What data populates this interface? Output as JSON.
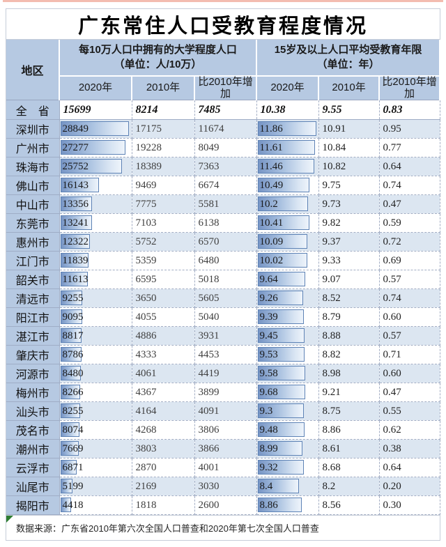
{
  "page": {
    "title": "广东常住人口受教育程度情况",
    "source_note": "数据来源：广东省2010年第六次全国人口普查和2020年第七次全国人口普查"
  },
  "table": {
    "region_header": "地区",
    "groups": [
      {
        "title_line1": "每10万人口中拥有的大学程度人口",
        "title_line2": "（单位：人/10万）"
      },
      {
        "title_line1": "15岁及以上人口平均受教育年限",
        "title_line2": "（单位：年）"
      }
    ],
    "sub_headers": [
      "2020年",
      "2010年",
      "比2010年增加",
      "2020年",
      "2010年",
      "比2010年增加"
    ],
    "total_row": {
      "region": "全　省",
      "values": [
        "15699",
        "8214",
        "7485",
        "10.38",
        "9.55",
        "0.83"
      ]
    },
    "rows": [
      {
        "region": "深圳市",
        "values": [
          "28849",
          "17175",
          "11674",
          "11.86",
          "10.91",
          "0.95"
        ],
        "shaded": true
      },
      {
        "region": "广州市",
        "values": [
          "27277",
          "19228",
          "8049",
          "11.61",
          "10.84",
          "0.77"
        ],
        "shaded": false
      },
      {
        "region": "珠海市",
        "values": [
          "25752",
          "18389",
          "7363",
          "11.46",
          "10.82",
          "0.64"
        ],
        "shaded": true
      },
      {
        "region": "佛山市",
        "values": [
          "16143",
          "9469",
          "6674",
          "10.49",
          "9.75",
          "0.74"
        ],
        "shaded": false
      },
      {
        "region": "中山市",
        "values": [
          "13356",
          "7775",
          "5581",
          "10.2",
          "9.73",
          "0.47"
        ],
        "shaded": true
      },
      {
        "region": "东莞市",
        "values": [
          "13241",
          "7103",
          "6138",
          "10.41",
          "9.82",
          "0.59"
        ],
        "shaded": false
      },
      {
        "region": "惠州市",
        "values": [
          "12322",
          "5752",
          "6570",
          "10.09",
          "9.37",
          "0.72"
        ],
        "shaded": true
      },
      {
        "region": "江门市",
        "values": [
          "11839",
          "5359",
          "6480",
          "10.02",
          "9.33",
          "0.69"
        ],
        "shaded": false
      },
      {
        "region": "韶关市",
        "values": [
          "11613",
          "6595",
          "5018",
          "9.64",
          "9.07",
          "0.57"
        ],
        "shaded": false
      },
      {
        "region": "清远市",
        "values": [
          "9255",
          "3650",
          "5605",
          "9.26",
          "8.52",
          "0.74"
        ],
        "shaded": true
      },
      {
        "region": "阳江市",
        "values": [
          "9095",
          "4055",
          "5040",
          "9.39",
          "8.79",
          "0.60"
        ],
        "shaded": false
      },
      {
        "region": "湛江市",
        "values": [
          "8817",
          "4886",
          "3931",
          "9.45",
          "8.88",
          "0.57"
        ],
        "shaded": true
      },
      {
        "region": "肇庆市",
        "values": [
          "8786",
          "4333",
          "4453",
          "9.53",
          "8.82",
          "0.71"
        ],
        "shaded": false
      },
      {
        "region": "河源市",
        "values": [
          "8480",
          "4061",
          "4419",
          "9.58",
          "8.98",
          "0.60"
        ],
        "shaded": true
      },
      {
        "region": "梅州市",
        "values": [
          "8266",
          "4367",
          "3899",
          "9.68",
          "9.21",
          "0.47"
        ],
        "shaded": false
      },
      {
        "region": "汕头市",
        "values": [
          "8255",
          "4164",
          "4091",
          "9.3",
          "8.75",
          "0.55"
        ],
        "shaded": true
      },
      {
        "region": "茂名市",
        "values": [
          "8074",
          "4268",
          "3806",
          "9.48",
          "8.86",
          "0.62"
        ],
        "shaded": false
      },
      {
        "region": "潮州市",
        "values": [
          "7669",
          "3803",
          "3866",
          "8.99",
          "8.61",
          "0.38"
        ],
        "shaded": true
      },
      {
        "region": "云浮市",
        "values": [
          "6871",
          "2870",
          "4001",
          "9.32",
          "8.68",
          "0.64"
        ],
        "shaded": false
      },
      {
        "region": "汕尾市",
        "values": [
          "5199",
          "2169",
          "3030",
          "8.4",
          "8.2",
          "0.20"
        ],
        "shaded": true
      },
      {
        "region": "揭阳市",
        "values": [
          "4418",
          "1818",
          "2600",
          "8.86",
          "8.56",
          "0.30"
        ],
        "shaded": false
      }
    ],
    "bar_scale": {
      "college_max": 28849,
      "years_max": 11.86,
      "max_width_pct": 96
    }
  },
  "colors": {
    "header_blue": "#b6c9e2",
    "band_blue": "#dce6f1",
    "bar_border": "#5d82b5",
    "bar_fill_start": "#7795c5",
    "grid_dash": "#a3aec4",
    "accent_strip": "#f3bcb0",
    "flag_green": "#2e7d32"
  },
  "chart_data": {
    "type": "table",
    "title": "广东常住人口受教育程度情况",
    "column_groups": [
      "每10万人口中拥有的大学程度人口（单位：人/10万）",
      "15岁及以上人口平均受教育年限（单位：年）"
    ],
    "columns": [
      "地区",
      "大学程度人口 2020年",
      "大学程度人口 2010年",
      "大学程度人口 比2010年增加",
      "平均受教育年限 2020年",
      "平均受教育年限 2010年",
      "平均受教育年限 比2010年增加"
    ],
    "rows": [
      [
        "全省",
        15699,
        8214,
        7485,
        10.38,
        9.55,
        0.83
      ],
      [
        "深圳市",
        28849,
        17175,
        11674,
        11.86,
        10.91,
        0.95
      ],
      [
        "广州市",
        27277,
        19228,
        8049,
        11.61,
        10.84,
        0.77
      ],
      [
        "珠海市",
        25752,
        18389,
        7363,
        11.46,
        10.82,
        0.64
      ],
      [
        "佛山市",
        16143,
        9469,
        6674,
        10.49,
        9.75,
        0.74
      ],
      [
        "中山市",
        13356,
        7775,
        5581,
        10.2,
        9.73,
        0.47
      ],
      [
        "东莞市",
        13241,
        7103,
        6138,
        10.41,
        9.82,
        0.59
      ],
      [
        "惠州市",
        12322,
        5752,
        6570,
        10.09,
        9.37,
        0.72
      ],
      [
        "江门市",
        11839,
        5359,
        6480,
        10.02,
        9.33,
        0.69
      ],
      [
        "韶关市",
        11613,
        6595,
        5018,
        9.64,
        9.07,
        0.57
      ],
      [
        "清远市",
        9255,
        3650,
        5605,
        9.26,
        8.52,
        0.74
      ],
      [
        "阳江市",
        9095,
        4055,
        5040,
        9.39,
        8.79,
        0.6
      ],
      [
        "湛江市",
        8817,
        4886,
        3931,
        9.45,
        8.88,
        0.57
      ],
      [
        "肇庆市",
        8786,
        4333,
        4453,
        9.53,
        8.82,
        0.71
      ],
      [
        "河源市",
        8480,
        4061,
        4419,
        9.58,
        8.98,
        0.6
      ],
      [
        "梅州市",
        8266,
        4367,
        3899,
        9.68,
        9.21,
        0.47
      ],
      [
        "汕头市",
        8255,
        4164,
        4091,
        9.3,
        8.75,
        0.55
      ],
      [
        "茂名市",
        8074,
        4268,
        3806,
        9.48,
        8.86,
        0.62
      ],
      [
        "潮州市",
        7669,
        3803,
        3866,
        8.99,
        8.61,
        0.38
      ],
      [
        "云浮市",
        6871,
        2870,
        4001,
        9.32,
        8.68,
        0.64
      ],
      [
        "汕尾市",
        5199,
        2169,
        3030,
        8.4,
        8.2,
        0.2
      ],
      [
        "揭阳市",
        4418,
        1818,
        2600,
        8.86,
        8.56,
        0.3
      ]
    ],
    "notes": "2020年两列带蓝色渐变数据条，条长与数值成正比（0为基准）",
    "source": "数据来源：广东省2010年第六次全国人口普查和2020年第七次全国人口普查"
  }
}
